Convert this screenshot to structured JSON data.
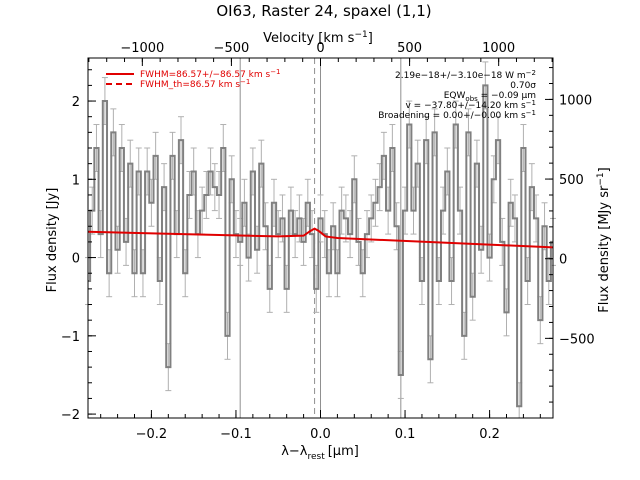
{
  "chart_data": {
    "type": "line",
    "title": "OI63, Raster 24, spaxel (1,1)",
    "xlabel": "λ−λ",
    "xlabel_sub": "rest",
    "xlabel_unit": "[μm]",
    "ylabel": "Flux density [Jy]",
    "ylabel_right": "Flux density [MJy sr",
    "ylabel_right_sup": "−1",
    "ylabel_right_tail": "]",
    "top_axis_label": "Velocity [km s",
    "top_axis_label_sup": "−1",
    "top_axis_label_tail": "]",
    "xlim": [
      -0.275,
      0.275
    ],
    "ylim": [
      -2.05,
      2.55
    ],
    "top_xlim": [
      -1305,
      1305
    ],
    "right_ylim": [
      -1000,
      1260
    ],
    "x_ticks": [
      -0.2,
      -0.1,
      0.0,
      0.1,
      0.2
    ],
    "x_tick_labels": [
      "−0.2",
      "−0.1",
      "0.0",
      "0.1",
      "0.2"
    ],
    "y_ticks": [
      -2,
      -1,
      0,
      1,
      2
    ],
    "y_tick_labels": [
      "−2",
      "−1",
      "0",
      "1",
      "2"
    ],
    "top_ticks": [
      -1000,
      -500,
      0,
      500,
      1000
    ],
    "top_tick_labels": [
      "−1000",
      "−500",
      "0",
      "500",
      "1000"
    ],
    "right_ticks": [
      -500,
      0,
      500,
      1000
    ],
    "right_tick_labels": [
      "−500",
      "0",
      "500",
      "1000"
    ],
    "vertical_lines_solid": [
      -0.095,
      0.0,
      0.095
    ],
    "vertical_line_dashed": -0.007,
    "legend": [
      {
        "label": "FWHM=86.57+/−86.57 km s",
        "sup": "−1",
        "style": "solid"
      },
      {
        "label": "FWHM_th=86.57 km s",
        "sup": "−1",
        "style": "dashed"
      }
    ],
    "annotations": [
      {
        "text": "2.19e−18+/−3.10e−18 W m",
        "sup": "−2"
      },
      {
        "text": "0.70σ"
      },
      {
        "text": "EQW",
        "sub": "obs",
        "tail": " = −0.09 μm"
      },
      {
        "text": "v = −37.80+/−14.20 km s",
        "sup": "−1"
      },
      {
        "text": "Broadening = 0.00+/−0.00 km s",
        "sup": "−1"
      }
    ],
    "series": [
      {
        "style": "step",
        "color": "#808080",
        "x": [
          -0.275,
          -0.27,
          -0.265,
          -0.26,
          -0.255,
          -0.25,
          -0.245,
          -0.24,
          -0.235,
          -0.23,
          -0.225,
          -0.22,
          -0.215,
          -0.21,
          -0.205,
          -0.2,
          -0.195,
          -0.19,
          -0.185,
          -0.18,
          -0.175,
          -0.17,
          -0.165,
          -0.16,
          -0.155,
          -0.15,
          -0.145,
          -0.14,
          -0.135,
          -0.13,
          -0.125,
          -0.12,
          -0.115,
          -0.11,
          -0.105,
          -0.1,
          -0.095,
          -0.09,
          -0.085,
          -0.08,
          -0.075,
          -0.07,
          -0.065,
          -0.06,
          -0.055,
          -0.05,
          -0.045,
          -0.04,
          -0.035,
          -0.03,
          -0.025,
          -0.02,
          -0.015,
          -0.01,
          -0.005,
          0.0,
          0.005,
          0.01,
          0.015,
          0.02,
          0.025,
          0.03,
          0.035,
          0.04,
          0.045,
          0.05,
          0.055,
          0.06,
          0.065,
          0.07,
          0.075,
          0.08,
          0.085,
          0.09,
          0.095,
          0.1,
          0.105,
          0.11,
          0.115,
          0.12,
          0.125,
          0.13,
          0.135,
          0.14,
          0.145,
          0.15,
          0.155,
          0.16,
          0.165,
          0.17,
          0.175,
          0.18,
          0.185,
          0.19,
          0.195,
          0.2,
          0.205,
          0.21,
          0.215,
          0.22,
          0.225,
          0.23,
          0.235,
          0.24,
          0.245,
          0.25,
          0.255,
          0.26,
          0.265,
          0.27,
          0.275
        ],
        "y": [
          -0.3,
          0.6,
          1.4,
          0.3,
          2.0,
          -0.2,
          1.6,
          0.1,
          1.4,
          0.2,
          1.2,
          -0.2,
          1.1,
          -0.2,
          1.1,
          0.7,
          1.3,
          -0.3,
          0.9,
          -1.4,
          1.3,
          0.3,
          1.5,
          -0.2,
          0.8,
          1.1,
          0.3,
          0.6,
          0.8,
          1.1,
          0.9,
          0.8,
          1.4,
          -1.0,
          1.0,
          0.3,
          0.2,
          0.7,
          0.0,
          1.1,
          0.1,
          1.2,
          0.4,
          -0.4,
          0.7,
          0.3,
          0.5,
          -0.4,
          0.6,
          0.3,
          0.5,
          0.2,
          0.7,
          0.3,
          -0.4,
          0.5,
          0.3,
          -0.2,
          0.4,
          -0.2,
          0.6,
          0.5,
          0.3,
          1.0,
          0.2,
          -0.2,
          0.3,
          0.5,
          0.7,
          0.9,
          1.3,
          0.6,
          1.4,
          0.4,
          -1.5,
          0.6,
          1.7,
          0.6,
          1.2,
          -0.3,
          1.5,
          -1.3,
          1.6,
          -0.3,
          0.6,
          1.1,
          -0.3,
          1.7,
          0.6,
          -1.0,
          1.6,
          -0.5,
          1.2,
          0.1,
          2.2,
          0.0,
          1.0,
          1.5,
          0.2,
          -0.7,
          0.7,
          0.5,
          -1.9,
          1.4,
          -0.3,
          0.9,
          0.5,
          -0.8,
          0.4,
          -0.3,
          0.2
        ],
        "err": 0.3
      },
      {
        "style": "line",
        "color": "#e00000",
        "x": [
          -0.275,
          -0.05,
          -0.02,
          -0.012,
          -0.007,
          -0.002,
          0.006,
          0.02,
          0.275
        ],
        "y": [
          0.33,
          0.27,
          0.28,
          0.34,
          0.37,
          0.34,
          0.27,
          0.25,
          0.13
        ]
      }
    ]
  }
}
